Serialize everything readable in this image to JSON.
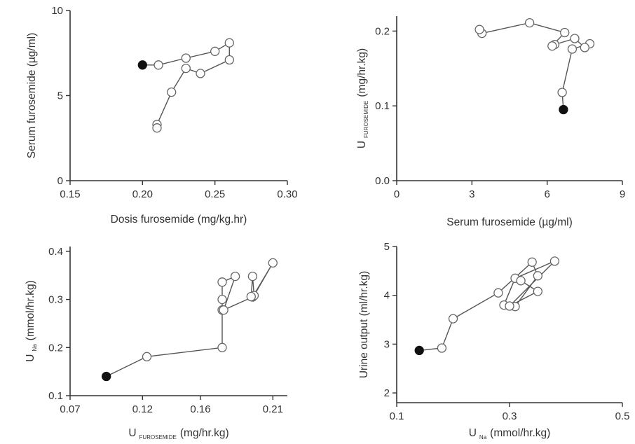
{
  "chart_data": [
    {
      "id": "p1",
      "type": "scatter",
      "connected": true,
      "xlabel": "Dosis furosemide (mg/kg.hr)",
      "ylabel": "Serum furosemide (µg/ml)",
      "xlim": [
        0.15,
        0.3
      ],
      "ylim": [
        0,
        10
      ],
      "xticks": [
        0.15,
        0.2,
        0.25,
        0.3
      ],
      "xtick_labels": [
        "0.15",
        "0.20",
        "0.25",
        "0.30"
      ],
      "yticks": [
        0,
        5,
        10
      ],
      "ytick_labels": [
        "0",
        "5",
        "10"
      ],
      "points": [
        {
          "x": 0.2,
          "y": 6.8,
          "filled": true
        },
        {
          "x": 0.211,
          "y": 6.8
        },
        {
          "x": 0.23,
          "y": 7.2
        },
        {
          "x": 0.25,
          "y": 7.6
        },
        {
          "x": 0.26,
          "y": 8.1
        },
        {
          "x": 0.26,
          "y": 7.1
        },
        {
          "x": 0.24,
          "y": 6.3
        },
        {
          "x": 0.23,
          "y": 6.6
        },
        {
          "x": 0.22,
          "y": 5.2
        },
        {
          "x": 0.21,
          "y": 3.3
        },
        {
          "x": 0.21,
          "y": 3.1
        }
      ]
    },
    {
      "id": "p2",
      "type": "scatter",
      "connected": true,
      "xlabel": "Serum furosemide (µg/ml)",
      "ylabel_main": "U",
      "ylabel_sub": "FUROSEMIDE",
      "ylabel_unit": "(mg/hr.kg)",
      "xlim": [
        0,
        9
      ],
      "ylim": [
        0,
        0.22
      ],
      "xticks": [
        0,
        3,
        6,
        9
      ],
      "xtick_labels": [
        "0",
        "3",
        "6",
        "9"
      ],
      "yticks": [
        0,
        0.1,
        0.2
      ],
      "ytick_labels": [
        "0.0",
        "0.1",
        "0.2"
      ],
      "points": [
        {
          "x": 6.65,
          "y": 0.095,
          "filled": true
        },
        {
          "x": 6.6,
          "y": 0.118
        },
        {
          "x": 7.0,
          "y": 0.176
        },
        {
          "x": 7.7,
          "y": 0.183
        },
        {
          "x": 7.5,
          "y": 0.178
        },
        {
          "x": 7.1,
          "y": 0.19
        },
        {
          "x": 6.3,
          "y": 0.182
        },
        {
          "x": 6.2,
          "y": 0.18
        },
        {
          "x": 6.7,
          "y": 0.198
        },
        {
          "x": 5.3,
          "y": 0.211
        },
        {
          "x": 3.4,
          "y": 0.197
        },
        {
          "x": 3.3,
          "y": 0.202
        }
      ]
    },
    {
      "id": "p3",
      "type": "scatter",
      "connected": true,
      "xlabel_main": "U",
      "xlabel_sub": "FUROSEMIDE",
      "xlabel_unit": "(mg/hr.kg)",
      "ylabel_main": "U",
      "ylabel_sub": "Na",
      "ylabel_unit": "(mmol/hr.kg)",
      "xlim": [
        0.07,
        0.22
      ],
      "ylim": [
        0.1,
        0.41
      ],
      "xticks": [
        0.07,
        0.12,
        0.16,
        0.21
      ],
      "xtick_labels": [
        "0.07",
        "0.12",
        "0.16",
        "0.21"
      ],
      "yticks": [
        0.1,
        0.2,
        0.3,
        0.4
      ],
      "ytick_labels": [
        "0.1",
        "0.2",
        "0.3",
        "0.4"
      ],
      "points": [
        {
          "x": 0.095,
          "y": 0.14,
          "filled": true
        },
        {
          "x": 0.123,
          "y": 0.181
        },
        {
          "x": 0.175,
          "y": 0.2
        },
        {
          "x": 0.175,
          "y": 0.278
        },
        {
          "x": 0.175,
          "y": 0.3
        },
        {
          "x": 0.175,
          "y": 0.336
        },
        {
          "x": 0.184,
          "y": 0.348
        },
        {
          "x": 0.176,
          "y": 0.278
        },
        {
          "x": 0.196,
          "y": 0.305
        },
        {
          "x": 0.21,
          "y": 0.376
        },
        {
          "x": 0.197,
          "y": 0.308
        },
        {
          "x": 0.196,
          "y": 0.348
        },
        {
          "x": 0.195,
          "y": 0.306
        }
      ]
    },
    {
      "id": "p4",
      "type": "scatter",
      "connected": true,
      "xlabel_main": "U",
      "xlabel_sub": "Na",
      "xlabel_unit": "(mmol/hr.kg)",
      "ylabel": "Urine output (ml/hr.kg)",
      "xlim": [
        0.1,
        0.5
      ],
      "ylim": [
        1.8,
        5.0
      ],
      "xticks": [
        0.1,
        0.3,
        0.5
      ],
      "xtick_labels": [
        "0.1",
        "0.3",
        "0.5"
      ],
      "yticks": [
        2,
        3,
        4,
        5
      ],
      "ytick_labels": [
        "2",
        "3",
        "4",
        "5"
      ],
      "points": [
        {
          "x": 0.14,
          "y": 2.87,
          "filled": true
        },
        {
          "x": 0.18,
          "y": 2.92
        },
        {
          "x": 0.2,
          "y": 3.52
        },
        {
          "x": 0.28,
          "y": 4.05
        },
        {
          "x": 0.34,
          "y": 4.68
        },
        {
          "x": 0.35,
          "y": 4.4
        },
        {
          "x": 0.31,
          "y": 3.77
        },
        {
          "x": 0.29,
          "y": 3.8
        },
        {
          "x": 0.31,
          "y": 4.35
        },
        {
          "x": 0.38,
          "y": 4.7
        },
        {
          "x": 0.3,
          "y": 3.78
        },
        {
          "x": 0.35,
          "y": 4.08
        },
        {
          "x": 0.32,
          "y": 4.3
        }
      ]
    }
  ]
}
